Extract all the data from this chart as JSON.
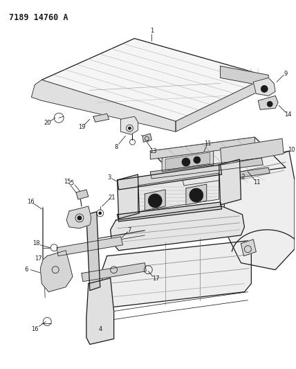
{
  "title": "7189 14760 A",
  "bg_color": "#ffffff",
  "line_color": "#1a1a1a",
  "title_fontsize": 8.5,
  "title_fontweight": "bold",
  "fig_width": 4.28,
  "fig_height": 5.33,
  "dpi": 100,
  "label_fs": 6.0,
  "lw_main": 0.9,
  "lw_thin": 0.55,
  "lw_thick": 1.4
}
